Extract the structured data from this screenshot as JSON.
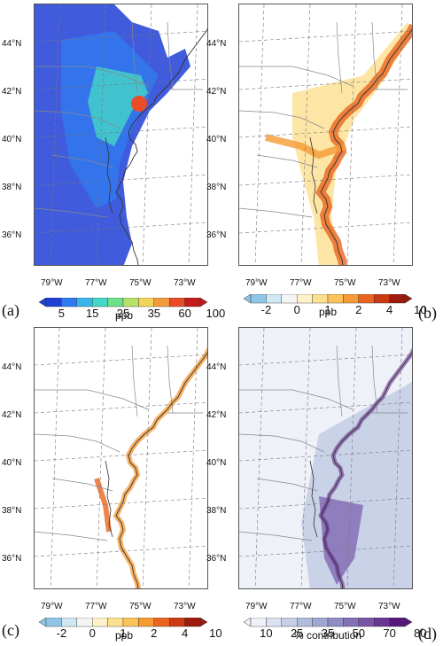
{
  "panels": [
    {
      "id": "a",
      "label": "(a)",
      "unit": "ppb",
      "ticks": [
        "5",
        "15",
        "25",
        "35",
        "60",
        "100"
      ],
      "colors": [
        "#1f3fd6",
        "#2f7af0",
        "#38b6e8",
        "#45d6c8",
        "#6ee08a",
        "#b8e06a",
        "#f3d45a",
        "#f39a3a",
        "#ea4c2a",
        "#c31a1a"
      ],
      "field": "high"
    },
    {
      "id": "b",
      "label": "(b)",
      "unit": "ppb",
      "ticks": [
        "-2",
        "0",
        "1",
        "2",
        "4",
        "10"
      ],
      "colors": [
        "#8fc6e6",
        "#cfe8f4",
        "#f4f4f4",
        "#fff2c8",
        "#fde08e",
        "#fbc35a",
        "#f59a35",
        "#e9651f",
        "#cc3a14",
        "#9e1a0c"
      ],
      "field": "mid"
    },
    {
      "id": "c",
      "label": "(c)",
      "unit": "ppb",
      "ticks": [
        "-2",
        "0",
        "1",
        "2",
        "4",
        "10"
      ],
      "colors": [
        "#8fc6e6",
        "#cfe8f4",
        "#f4f4f4",
        "#fff2c8",
        "#fde08e",
        "#fbc35a",
        "#f59a35",
        "#e9651f",
        "#cc3a14",
        "#9e1a0c"
      ],
      "field": "low"
    },
    {
      "id": "d",
      "label": "(d)",
      "unit": "% contribution",
      "ticks": [
        "10",
        "25",
        "35",
        "50",
        "70",
        "80"
      ],
      "colors": [
        "#eef1f8",
        "#dbe1ef",
        "#c5cee6",
        "#b0bcdc",
        "#9ea6d2",
        "#8f8cc4",
        "#8570b6",
        "#7a54a6",
        "#6b3592",
        "#56177a"
      ],
      "field": "pct"
    }
  ],
  "lat_labels": [
    "44°N",
    "42°N",
    "40°N",
    "38°N",
    "36°N"
  ],
  "lon_labels": [
    "79°W",
    "77°W",
    "75°W",
    "73°W"
  ]
}
